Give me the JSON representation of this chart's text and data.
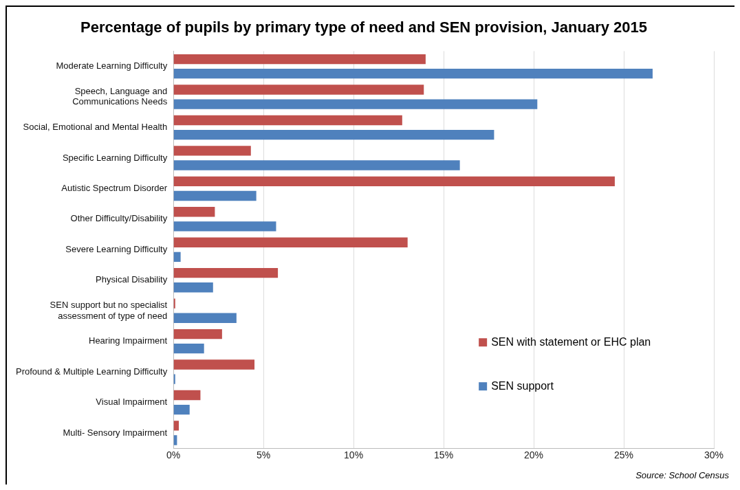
{
  "chart_data": {
    "type": "bar",
    "orientation": "horizontal",
    "title": "Percentage of pupils by primary type of need and SEN provision, January 2015",
    "categories": [
      "Moderate Learning Difficulty",
      "Speech, Language and Communications Needs",
      "Social, Emotional and Mental Health",
      "Specific Learning Difficulty",
      "Autistic Spectrum Disorder",
      "Other Difficulty/Disability",
      "Severe Learning Difficulty",
      "Physical Disability",
      "SEN support but no specialist assessment of type of need",
      "Hearing Impairment",
      "Profound & Multiple Learning Difficulty",
      "Visual Impairment",
      "Multi- Sensory Impairment"
    ],
    "series": [
      {
        "name": "SEN with statement or EHC plan",
        "color": "#c0504d",
        "values": [
          14.0,
          13.9,
          12.7,
          4.3,
          24.5,
          2.3,
          13.0,
          5.8,
          0.1,
          2.7,
          4.5,
          1.5,
          0.3
        ]
      },
      {
        "name": "SEN support",
        "color": "#4f81bd",
        "values": [
          26.6,
          20.2,
          17.8,
          15.9,
          4.6,
          5.7,
          0.4,
          2.2,
          3.5,
          1.7,
          0.1,
          0.9,
          0.2
        ]
      }
    ],
    "xlim": [
      0,
      30
    ],
    "xticks": [
      {
        "value": 0,
        "label": "0%"
      },
      {
        "value": 5,
        "label": "5%"
      },
      {
        "value": 10,
        "label": "10%"
      },
      {
        "value": 15,
        "label": "15%"
      },
      {
        "value": 20,
        "label": "20%"
      },
      {
        "value": 25,
        "label": "25%"
      },
      {
        "value": 30,
        "label": "30%"
      }
    ],
    "grid": "x",
    "legend": "bottom right",
    "annotations": [
      "Source: School Census"
    ]
  }
}
